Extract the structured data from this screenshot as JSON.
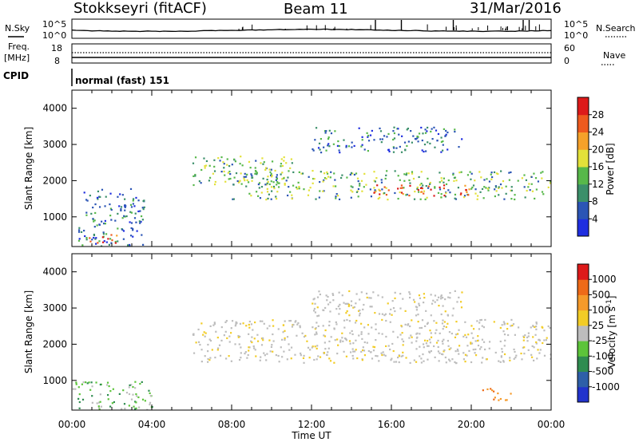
{
  "header": {
    "radar": "Stokkseyri (fitACF)",
    "beam": "Beam 11",
    "date": "31/Mar/2016"
  },
  "status_labels": {
    "nsky": "N.Sky",
    "nsearch": "N.Search",
    "freq": "Freq.",
    "freq_unit": "[MHz]",
    "nave": "Nave",
    "cpid": "CPID",
    "cpid_value": "normal (fast) 151",
    "noise_ticks": [
      "10^5",
      "10^0"
    ],
    "freq_ticks": [
      "18",
      "8"
    ],
    "nave_ticks": [
      "60",
      "0"
    ]
  },
  "chart_data": [
    {
      "type": "heatmap",
      "name": "power",
      "ylabel": "Slant Range [km]",
      "xlabel": "Time UT",
      "xlim": [
        "00:00",
        "24:00"
      ],
      "ylim": [
        180,
        4500
      ],
      "x_ticks": [
        "00:00",
        "04:00",
        "08:00",
        "12:00",
        "16:00",
        "20:00",
        "00:00"
      ],
      "y_ticks": [
        1000,
        2000,
        3000,
        4000
      ],
      "colorbar": {
        "label": "Power [dB]",
        "ticks": [
          4,
          8,
          12,
          16,
          20,
          24,
          28
        ],
        "colors": [
          "#1f2ee0",
          "#2b55b5",
          "#3b8f6a",
          "#57b84a",
          "#e3e13a",
          "#f5a12a",
          "#ee5a1e",
          "#dd1a1a"
        ]
      },
      "regions": [
        {
          "t0": 0.3,
          "t1": 3.6,
          "r0": 200,
          "r1": 1800,
          "level": "low"
        },
        {
          "t0": 0.8,
          "t1": 2.3,
          "r0": 280,
          "r1": 560,
          "level": "strong"
        },
        {
          "t0": 6.0,
          "t1": 11.0,
          "r0": 1900,
          "r1": 2700,
          "level": "medium"
        },
        {
          "t0": 8.0,
          "t1": 24.0,
          "r0": 1500,
          "r1": 2300,
          "level": "medium"
        },
        {
          "t0": 15.0,
          "t1": 20.0,
          "r0": 1600,
          "r1": 1900,
          "level": "strong"
        },
        {
          "t0": 12.0,
          "t1": 19.5,
          "r0": 2800,
          "r1": 3500,
          "level": "low"
        }
      ]
    },
    {
      "type": "heatmap",
      "name": "velocity",
      "ylabel": "Slant Range [km]",
      "xlabel": "Time UT",
      "xlim": [
        "00:00",
        "24:00"
      ],
      "ylim": [
        180,
        4500
      ],
      "x_ticks": [
        "00:00",
        "04:00",
        "08:00",
        "12:00",
        "16:00",
        "20:00",
        "00:00"
      ],
      "y_ticks": [
        1000,
        2000,
        3000,
        4000
      ],
      "colorbar": {
        "label": "Velocity [m s^-1]",
        "ticks": [
          "1000",
          "500",
          "100",
          "25",
          "-25",
          "-100",
          "-500",
          "-1000"
        ],
        "colors": [
          "#2233cc",
          "#2e5fa8",
          "#2f8c50",
          "#5cc43a",
          "#bdbdbd",
          "#f2cc26",
          "#f59a2a",
          "#ee6a18",
          "#dd1a1a"
        ]
      },
      "regions": [
        {
          "t0": 0.0,
          "t1": 4.0,
          "r0": 200,
          "r1": 1000,
          "level": "positive"
        },
        {
          "t0": 6.0,
          "t1": 24.0,
          "r0": 1500,
          "r1": 2700,
          "level": "ground"
        },
        {
          "t0": 12.0,
          "t1": 19.5,
          "r0": 2800,
          "r1": 3500,
          "level": "ground"
        },
        {
          "t0": 20.5,
          "t1": 22.0,
          "r0": 450,
          "r1": 800,
          "level": "negative"
        }
      ]
    }
  ]
}
